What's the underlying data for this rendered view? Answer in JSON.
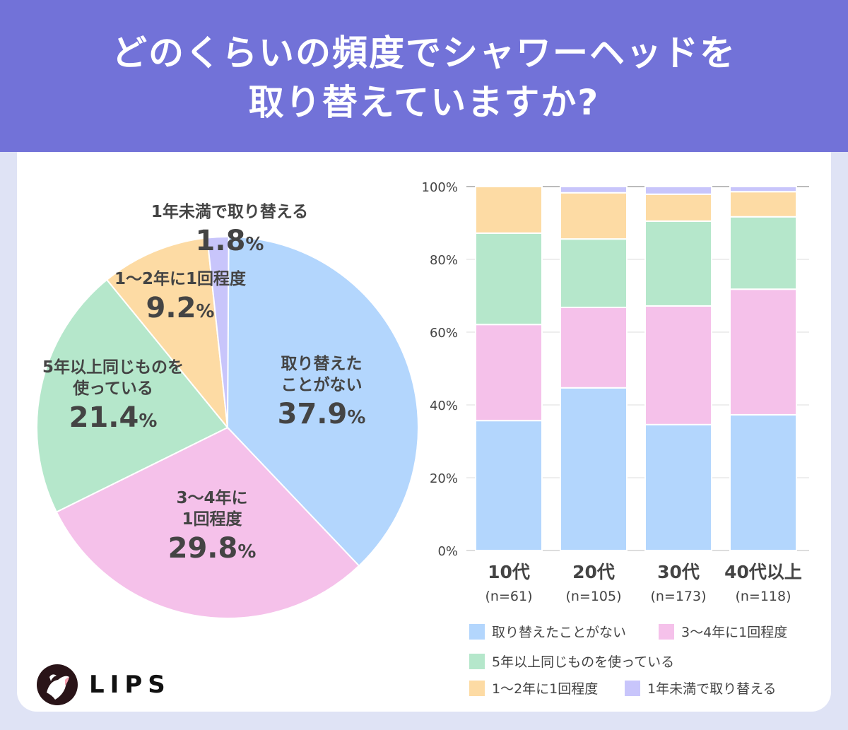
{
  "title_lines": [
    "どのくらいの頻度でシャワーヘッドを",
    "取り替えていますか?"
  ],
  "brand": "LIPS",
  "colors": {
    "header": "#7272d8",
    "never": "#b3d6fd",
    "y3_4": "#f5c1ea",
    "y5plus": "#b5e7cb",
    "y1_2": "#fddba4",
    "lt1": "#c8c5fb"
  },
  "chart_data": [
    {
      "type": "pie",
      "slices": [
        {
          "label": "取り替えたことがない",
          "value": 37.9,
          "lines": [
            "取り替えた",
            "ことがない"
          ]
        },
        {
          "label": "3〜4年に1回程度",
          "value": 29.8,
          "lines": [
            "3〜4年に",
            "1回程度"
          ]
        },
        {
          "label": "5年以上同じものを使っている",
          "value": 21.4,
          "lines": [
            "5年以上同じものを",
            "使っている"
          ]
        },
        {
          "label": "1〜2年に1回程度",
          "value": 9.2,
          "lines": [
            "1〜2年に1回程度"
          ]
        },
        {
          "label": "1年未満で取り替える",
          "value": 1.8,
          "lines": [
            "1年未満で取り替える"
          ]
        }
      ],
      "unit": "%"
    },
    {
      "type": "bar",
      "stacked": true,
      "ylim": [
        0,
        100
      ],
      "yticks": [
        "0%",
        "20%",
        "40%",
        "60%",
        "80%",
        "100%"
      ],
      "categories": [
        "10代",
        "20代",
        "30代",
        "40代以上"
      ],
      "category_n": [
        "(n=61)",
        "(n=105)",
        "(n=173)",
        "(n=118)"
      ],
      "series": [
        {
          "name": "取り替えたことがない",
          "values": [
            35.7,
            44.7,
            34.6,
            37.3
          ]
        },
        {
          "name": "3〜4年に1回程度",
          "values": [
            26.4,
            22.1,
            32.6,
            34.5
          ]
        },
        {
          "name": "5年以上同じものを使っている",
          "values": [
            25.1,
            18.8,
            23.3,
            19.9
          ]
        },
        {
          "name": "1〜2年に1回程度",
          "values": [
            12.8,
            12.7,
            7.4,
            6.9
          ]
        },
        {
          "name": "1年未満で取り替える",
          "values": [
            0,
            1.7,
            2.1,
            1.4
          ]
        }
      ]
    }
  ]
}
